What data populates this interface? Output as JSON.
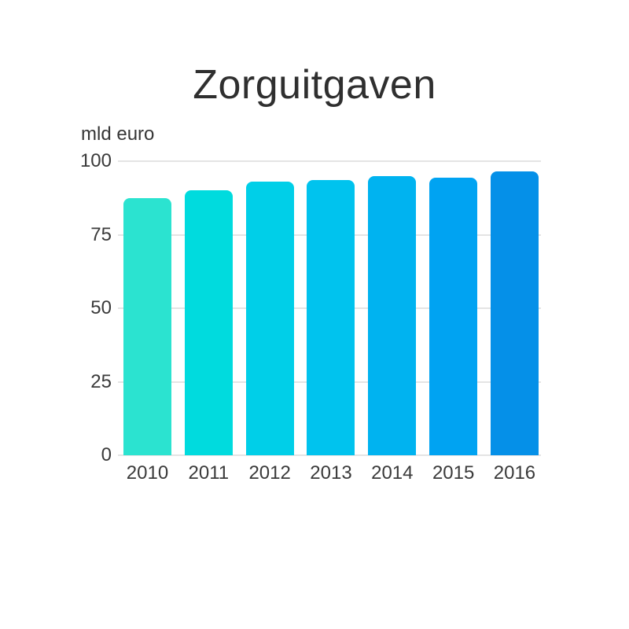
{
  "page": {
    "background_color": "#ffffff",
    "text_color": "#3a3a3a"
  },
  "chart_data": {
    "type": "bar",
    "title": "Zorguitgaven",
    "ylabel": "mld euro",
    "xlabel": "",
    "categories": [
      "2010",
      "2011",
      "2012",
      "2013",
      "2014",
      "2015",
      "2016"
    ],
    "values": [
      87.5,
      90,
      93,
      93.5,
      95,
      94.5,
      96.5
    ],
    "bar_colors": [
      "#2be3d0",
      "#00dbde",
      "#00cfe8",
      "#00c3ee",
      "#00b3f0",
      "#00a3f2",
      "#0590e8"
    ],
    "yticks": [
      0,
      25,
      50,
      75,
      100
    ],
    "ylim": [
      0,
      100
    ],
    "grid": true,
    "gridline_color": "#e4e4e4",
    "legend": "none",
    "bar_corner_style": "rounded-top"
  }
}
